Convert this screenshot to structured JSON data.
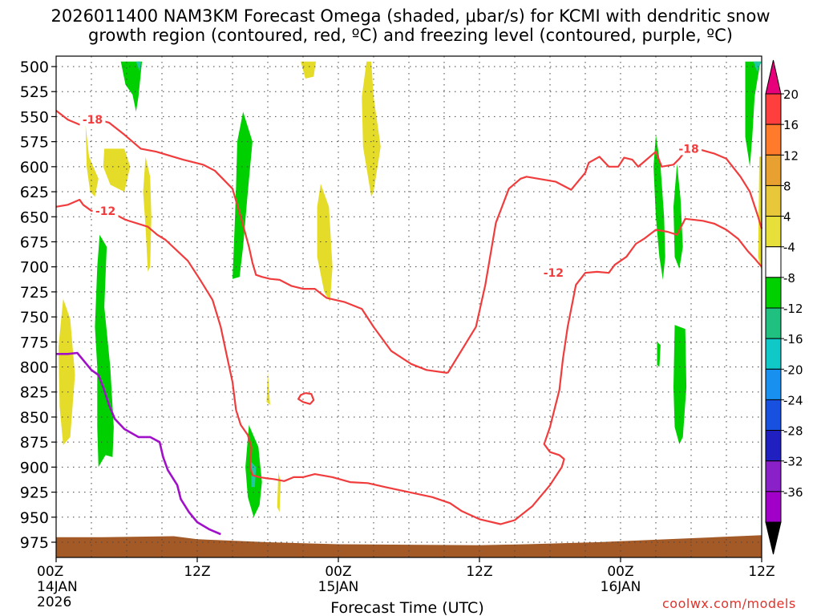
{
  "header": {
    "title_line1": "2026011400 NAM3KM Forecast Omega (shaded, μbar/s) for KCMI with dendritic snow",
    "title_line2": "growth region (contoured, red, ºC) and freezing level (contoured, purple, ºC)"
  },
  "credit": "coolwx.com/models",
  "chart_data": {
    "type": "area",
    "title": "2026011400 NAM3KM Forecast Omega (shaded, μbar/s) for KCMI with dendritic snow growth region (contoured, red, ºC) and freezing level (contoured, purple, ºC)",
    "xlabel": "Forecast Time (UTC)",
    "ylabel": "",
    "xlim": [
      0,
      60
    ],
    "ylim": [
      985,
      495
    ],
    "x_ticks": [
      {
        "x": 0,
        "label": "00Z",
        "sub": "14JAN",
        "sub2": "2026"
      },
      {
        "x": 12,
        "label": "12Z",
        "sub": "",
        "sub2": ""
      },
      {
        "x": 24,
        "label": "00Z",
        "sub": "15JAN",
        "sub2": ""
      },
      {
        "x": 36,
        "label": "12Z",
        "sub": "",
        "sub2": ""
      },
      {
        "x": 48,
        "label": "00Z",
        "sub": "16JAN",
        "sub2": ""
      },
      {
        "x": 60,
        "label": "12Z",
        "sub": "",
        "sub2": ""
      }
    ],
    "y_ticks": [
      500,
      525,
      550,
      575,
      600,
      625,
      650,
      675,
      700,
      725,
      750,
      775,
      800,
      825,
      850,
      875,
      900,
      925,
      950,
      975
    ],
    "grid": true,
    "colorbar": {
      "labels": [
        "20",
        "16",
        "12",
        "8",
        "4",
        "-4",
        "-8",
        "-12",
        "-16",
        "-20",
        "-24",
        "-28",
        "-32",
        "-36"
      ],
      "top_color": "#e8007a",
      "bottom_color": "#000000",
      "colors": [
        "#ff3e3e",
        "#ff7a2a",
        "#e8a030",
        "#e8c83a",
        "#e8e03a",
        "#ffffff",
        "#00d000",
        "#20c080",
        "#10c8c8",
        "#1890f0",
        "#1850e0",
        "#2020c0",
        "#8a20c8",
        "#a000c8",
        "#a8a8a8"
      ]
    },
    "omega_regions": [
      {
        "value": 6,
        "color": "#e5dc2a",
        "points": [
          [
            0.2,
            780
          ],
          [
            0.6,
            732
          ],
          [
            1.2,
            752
          ],
          [
            1.6,
            808
          ],
          [
            1.2,
            870
          ],
          [
            0.6,
            878
          ],
          [
            0.3,
            840
          ]
        ]
      },
      {
        "value": 6,
        "color": "#e5dc2a",
        "points": [
          [
            2.5,
            558
          ],
          [
            2.8,
            590
          ],
          [
            3.6,
            612
          ],
          [
            3.3,
            630
          ],
          [
            2.9,
            625
          ],
          [
            2.6,
            600
          ]
        ]
      },
      {
        "value": 6,
        "color": "#e5dc2a",
        "points": [
          [
            4.1,
            582
          ],
          [
            5.8,
            582
          ],
          [
            6.3,
            600
          ],
          [
            5.8,
            625
          ],
          [
            4.6,
            618
          ],
          [
            4.0,
            600
          ]
        ]
      },
      {
        "value": 6,
        "color": "#e5dc2a",
        "points": [
          [
            7.6,
            590
          ],
          [
            8.0,
            610
          ],
          [
            8.1,
            650
          ],
          [
            8.0,
            700
          ],
          [
            7.8,
            705
          ],
          [
            7.6,
            660
          ],
          [
            7.4,
            625
          ]
        ]
      },
      {
        "value": 6,
        "color": "#e5dc2a",
        "points": [
          [
            20.8,
            495
          ],
          [
            22.1,
            495
          ],
          [
            21.9,
            510
          ],
          [
            21.2,
            512
          ]
        ]
      },
      {
        "value": 6,
        "color": "#e5dc2a",
        "points": [
          [
            22.5,
            617
          ],
          [
            23.2,
            640
          ],
          [
            23.5,
            700
          ],
          [
            23.3,
            735
          ],
          [
            22.8,
            725
          ],
          [
            22.2,
            690
          ],
          [
            22.2,
            640
          ]
        ]
      },
      {
        "value": 6,
        "color": "#e5dc2a",
        "points": [
          [
            26.4,
            495
          ],
          [
            26.8,
            495
          ],
          [
            27.0,
            530
          ],
          [
            27.6,
            580
          ],
          [
            27.0,
            625
          ],
          [
            26.8,
            630
          ],
          [
            26.1,
            580
          ],
          [
            26.0,
            530
          ]
        ]
      },
      {
        "value": 6,
        "color": "#e5dc2a",
        "points": [
          [
            18.0,
            805
          ],
          [
            18.2,
            838
          ],
          [
            17.9,
            835
          ]
        ]
      },
      {
        "value": 6,
        "color": "#e5dc2a",
        "points": [
          [
            18.9,
            905
          ],
          [
            19.1,
            915
          ],
          [
            19.0,
            945
          ],
          [
            18.8,
            940
          ]
        ]
      },
      {
        "value": 6,
        "color": "#e5dc2a",
        "points": [
          [
            59.8,
            590
          ],
          [
            60.0,
            590
          ],
          [
            60.0,
            705
          ],
          [
            59.7,
            690
          ]
        ]
      },
      {
        "value": -6,
        "color": "#00d000",
        "points": [
          [
            5.5,
            495
          ],
          [
            6.4,
            495
          ],
          [
            7.3,
            495
          ],
          [
            7.0,
            530
          ],
          [
            6.8,
            545
          ],
          [
            6.5,
            528
          ],
          [
            5.9,
            518
          ]
        ]
      },
      {
        "value": -6,
        "color": "#00d000",
        "points": [
          [
            15.9,
            545
          ],
          [
            16.7,
            575
          ],
          [
            16.3,
            625
          ],
          [
            15.9,
            680
          ],
          [
            15.6,
            710
          ],
          [
            15.0,
            712
          ],
          [
            15.2,
            655
          ],
          [
            15.3,
            620
          ],
          [
            15.4,
            575
          ]
        ]
      },
      {
        "value": -6,
        "color": "#00d000",
        "points": [
          [
            3.7,
            668
          ],
          [
            4.3,
            680
          ],
          [
            4.1,
            740
          ],
          [
            4.6,
            800
          ],
          [
            4.9,
            860
          ],
          [
            4.8,
            890
          ],
          [
            4.2,
            888
          ],
          [
            3.6,
            900
          ],
          [
            3.5,
            860
          ],
          [
            3.5,
            800
          ],
          [
            3.3,
            760
          ],
          [
            3.5,
            700
          ]
        ]
      },
      {
        "value": -6,
        "color": "#00d000",
        "points": [
          [
            16.4,
            858
          ],
          [
            17.2,
            880
          ],
          [
            17.5,
            915
          ],
          [
            17.3,
            938
          ],
          [
            16.8,
            950
          ],
          [
            16.3,
            930
          ],
          [
            16.1,
            900
          ]
        ]
      },
      {
        "value": -6,
        "color": "#00d000",
        "points": [
          [
            58.6,
            495
          ],
          [
            59.9,
            495
          ],
          [
            59.4,
            530
          ],
          [
            59.2,
            570
          ],
          [
            59.0,
            600
          ],
          [
            58.6,
            570
          ],
          [
            58.6,
            530
          ]
        ]
      },
      {
        "value": -6,
        "color": "#00d000",
        "points": [
          [
            51.0,
            568
          ],
          [
            51.4,
            600
          ],
          [
            51.7,
            650
          ],
          [
            51.8,
            690
          ],
          [
            51.6,
            713
          ],
          [
            51.3,
            690
          ],
          [
            51.0,
            650
          ],
          [
            50.8,
            600
          ]
        ]
      },
      {
        "value": -6,
        "color": "#00d000",
        "points": [
          [
            52.8,
            597
          ],
          [
            53.1,
            632
          ],
          [
            53.3,
            680
          ],
          [
            53.0,
            702
          ],
          [
            52.6,
            690
          ],
          [
            52.5,
            640
          ]
        ]
      },
      {
        "value": -6,
        "color": "#00d000",
        "points": [
          [
            52.6,
            758
          ],
          [
            53.5,
            762
          ],
          [
            53.6,
            820
          ],
          [
            53.3,
            870
          ],
          [
            53.0,
            877
          ],
          [
            52.6,
            860
          ],
          [
            52.5,
            820
          ]
        ]
      },
      {
        "value": -6,
        "color": "#00d000",
        "points": [
          [
            51.1,
            775
          ],
          [
            51.4,
            778
          ],
          [
            51.3,
            800
          ],
          [
            51.1,
            798
          ]
        ]
      },
      {
        "value": -10,
        "color": "#20c8a0",
        "points": [
          [
            6.8,
            495
          ],
          [
            7.2,
            495
          ],
          [
            7.1,
            505
          ]
        ]
      },
      {
        "value": -10,
        "color": "#20c8a0",
        "points": [
          [
            16.6,
            895
          ],
          [
            17.0,
            900
          ],
          [
            16.9,
            920
          ],
          [
            16.6,
            920
          ]
        ]
      },
      {
        "value": -10,
        "color": "#20c8a0",
        "points": [
          [
            59.3,
            495
          ],
          [
            60.0,
            495
          ],
          [
            59.6,
            505
          ]
        ]
      }
    ],
    "series": [
      {
        "name": "-18",
        "label_at": [
          3.1,
          553
        ],
        "color": "#f03c3c",
        "x": [
          0.0,
          1.0,
          2.0,
          2.4,
          3.3,
          4.5,
          5.8,
          7.2,
          8.5,
          10.8,
          12.5,
          13.5,
          15.0,
          15.7,
          16.4,
          16.7,
          17.0,
          17.5,
          18.2,
          19.0,
          20.0,
          21.0,
          22.0,
          23.0,
          24.5,
          26.0,
          27.0,
          28.5,
          30.2,
          31.5,
          33.3
        ],
        "y": [
          544,
          553,
          558,
          555,
          552,
          556,
          568,
          582,
          585,
          593,
          598,
          604,
          622,
          650,
          680,
          696,
          708,
          710,
          712,
          713,
          719,
          722,
          722,
          731,
          735,
          742,
          760,
          784,
          797,
          803,
          806
        ]
      },
      {
        "name": "-18",
        "label_at": [
          53.8,
          582
        ],
        "color": "#f03c3c",
        "x": [
          33.3,
          34.5,
          35.7,
          36.5,
          37.4,
          38.5,
          39.5,
          40.0,
          41.0,
          42.5,
          43.8,
          45.0,
          45.3,
          46.2,
          47.0,
          47.8,
          48.3,
          49.0,
          49.5,
          49.8,
          51.0,
          51.5,
          52.5,
          53.0,
          53.6,
          53.8,
          54.5,
          56.0,
          57.0,
          58.2,
          59.0,
          59.7,
          60.0
        ],
        "y": [
          806,
          783,
          760,
          718,
          656,
          622,
          612,
          610,
          612,
          615,
          623,
          606,
          596,
          590,
          600,
          600,
          591,
          593,
          600,
          597,
          585,
          600,
          598,
          592,
          583,
          582,
          582,
          587,
          592,
          610,
          625,
          650,
          662
        ]
      },
      {
        "name": "-12",
        "label_at": [
          4.2,
          644
        ],
        "color": "#f03c3c",
        "x": [
          0.0,
          1.0,
          2.0,
          2.3,
          3.0,
          4.6,
          5.9,
          7.8,
          8.6,
          9.3,
          11.2,
          12.2,
          13.3,
          14.0,
          14.5,
          15.0,
          15.3,
          15.7,
          16.3,
          16.6,
          16.5,
          16.7,
          17.3,
          17.8,
          18.5,
          19.4,
          20.2,
          21.0,
          22.0,
          23.5,
          25.0,
          26.5,
          28.0,
          30.0,
          32.0,
          33.5,
          34.5,
          36.0,
          37.8,
          39.0,
          40.5,
          42.0,
          43.0,
          43.2,
          42.8,
          42.0,
          41.5,
          42.0,
          42.8,
          43.1,
          43.5,
          44.2,
          45.0,
          46.0,
          47.0,
          47.5,
          48.5,
          49.3,
          50.0,
          51.0,
          52.0,
          52.8,
          53.5,
          55.0,
          56.0,
          57.0,
          58.0,
          58.8,
          59.5,
          60.0
        ],
        "y": [
          640,
          638,
          633,
          638,
          644,
          645,
          653,
          660,
          668,
          673,
          694,
          712,
          733,
          760,
          788,
          815,
          843,
          858,
          868,
          880,
          900,
          908,
          910,
          911,
          912,
          914,
          910,
          910,
          907,
          910,
          915,
          916,
          920,
          925,
          930,
          936,
          944,
          952,
          957,
          953,
          939,
          918,
          900,
          892,
          888,
          885,
          877,
          860,
          823,
          792,
          760,
          718,
          706,
          705,
          706,
          698,
          690,
          677,
          672,
          663,
          665,
          668,
          652,
          654,
          657,
          663,
          672,
          684,
          693,
          700
        ]
      },
      {
        "name": "-12",
        "label_at": [
          42.3,
          706
        ],
        "color": "#f03c3c",
        "x": [
          21.2,
          21.7,
          21.9,
          21.6,
          21.0,
          20.6,
          20.8,
          21.2
        ],
        "y": [
          826,
          827,
          833,
          837,
          835,
          832,
          828,
          826
        ]
      },
      {
        "name": "0",
        "label_at": [
          0,
          0
        ],
        "color": "#a010c8",
        "x": [
          0.0,
          1.0,
          1.8,
          2.3,
          3.0,
          3.6,
          4.0,
          4.5,
          5.0,
          5.8,
          7.0,
          8.0,
          8.8,
          9.1,
          9.5,
          10.3,
          10.6,
          11.3,
          12.0,
          13.0,
          14.0
        ],
        "y": [
          787,
          787,
          786,
          793,
          803,
          808,
          820,
          838,
          852,
          862,
          870,
          870,
          875,
          890,
          903,
          918,
          932,
          945,
          955,
          962,
          967
        ]
      }
    ],
    "terrain": {
      "color": "#a35a26",
      "x": [
        0,
        4,
        10,
        12,
        14,
        18,
        24,
        36,
        40,
        46,
        52,
        56,
        60
      ],
      "y": [
        970,
        970,
        969,
        972,
        973,
        975,
        977,
        978,
        977,
        975,
        972,
        970,
        968
      ]
    }
  }
}
